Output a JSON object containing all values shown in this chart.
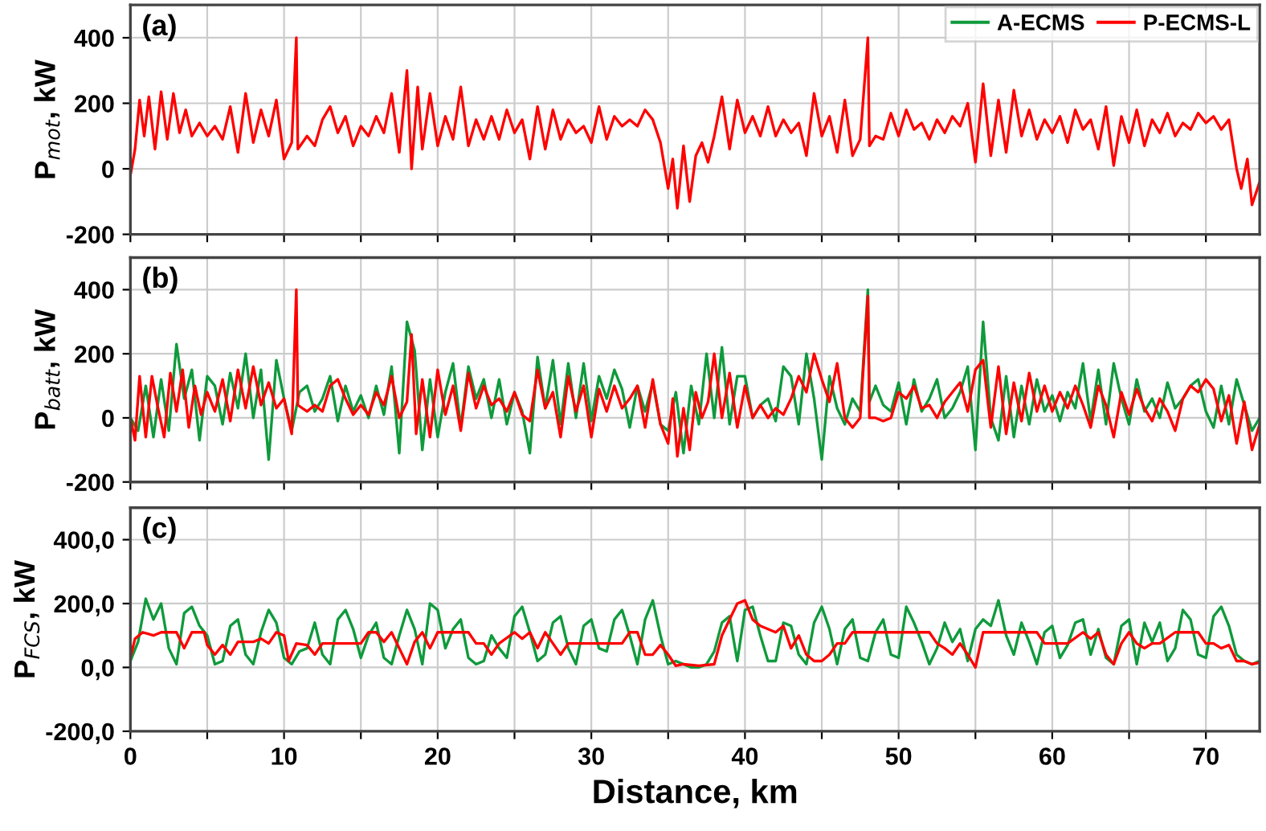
{
  "chart_data": [
    {
      "type": "line",
      "ylabel": "P$_{mot}$, kW",
      "annotations": [
        "(a)"
      ],
      "tick_labels": "y",
      "grid": true,
      "legend": "top right",
      "xlim": [
        0,
        73.5
      ],
      "ylim": [
        -200,
        500
      ],
      "xticks": [
        0,
        {
          "value": 5,
          "label": null
        },
        10,
        {
          "value": 15,
          "label": null
        },
        20,
        {
          "value": 25,
          "label": null
        },
        30,
        {
          "value": 35,
          "label": null
        },
        40,
        {
          "value": 45,
          "label": null
        },
        50,
        {
          "value": 55,
          "label": null
        },
        60,
        {
          "value": 65,
          "label": null
        },
        70
      ],
      "yticks": [
        -200,
        0,
        200,
        400
      ],
      "series": [
        {
          "name": "A-ECMS",
          "color": "#0f9a3c"
        },
        {
          "name": "P-ECMS-L",
          "color": "#ff0000",
          "x": [
            0,
            0.3,
            0.6,
            0.9,
            1.2,
            1.6,
            2,
            2.4,
            2.8,
            3.2,
            3.6,
            4,
            4.5,
            5,
            5.5,
            6,
            6.5,
            7,
            7.5,
            8,
            8.5,
            9,
            9.5,
            10,
            10.5,
            10.8,
            10.9,
            11.5,
            12,
            12.5,
            13,
            13.5,
            14,
            14.5,
            15,
            15.5,
            16,
            16.5,
            17,
            17.5,
            18,
            18.3,
            18.7,
            19,
            19.5,
            20,
            20.5,
            21,
            21.5,
            22,
            22.5,
            23,
            23.5,
            24,
            24.5,
            25,
            25.5,
            26,
            26.5,
            27,
            27.5,
            28,
            28.5,
            29,
            29.5,
            30,
            30.5,
            31,
            31.5,
            32,
            32.5,
            33,
            33.5,
            34,
            34.5,
            35,
            35.3,
            35.6,
            36,
            36.4,
            36.8,
            37.2,
            37.6,
            38,
            38.5,
            39,
            39.5,
            40,
            40.5,
            41,
            41.5,
            42,
            42.5,
            43,
            43.5,
            44,
            44.5,
            45,
            45.5,
            46,
            46.5,
            47,
            47.5,
            48,
            48.1,
            48.5,
            49,
            49.5,
            50,
            50.5,
            51,
            51.5,
            52,
            52.5,
            53,
            53.5,
            54,
            54.5,
            55,
            55.5,
            56,
            56.5,
            57,
            57.5,
            58,
            58.5,
            59,
            59.5,
            60,
            60.5,
            61,
            61.5,
            62,
            62.5,
            63,
            63.5,
            64,
            64.5,
            65,
            65.5,
            66,
            66.5,
            67,
            67.5,
            68,
            68.5,
            69,
            69.5,
            70,
            70.5,
            71,
            71.5,
            72,
            72.3,
            72.7,
            73,
            73.5
          ],
          "values": [
            -20,
            60,
            210,
            100,
            220,
            60,
            235,
            90,
            230,
            110,
            180,
            100,
            140,
            100,
            130,
            90,
            190,
            50,
            230,
            80,
            180,
            100,
            210,
            30,
            80,
            400,
            60,
            100,
            70,
            150,
            190,
            110,
            160,
            70,
            130,
            100,
            160,
            110,
            230,
            50,
            300,
            0,
            250,
            60,
            230,
            70,
            160,
            90,
            250,
            70,
            150,
            90,
            160,
            90,
            180,
            110,
            150,
            30,
            190,
            60,
            180,
            90,
            150,
            110,
            130,
            80,
            190,
            90,
            160,
            130,
            150,
            130,
            180,
            150,
            80,
            -60,
            30,
            -120,
            70,
            -100,
            40,
            80,
            20,
            100,
            220,
            60,
            210,
            110,
            160,
            100,
            190,
            100,
            150,
            110,
            140,
            40,
            230,
            100,
            160,
            50,
            210,
            40,
            90,
            400,
            70,
            100,
            90,
            170,
            100,
            180,
            120,
            140,
            90,
            150,
            110,
            160,
            130,
            200,
            20,
            260,
            40,
            210,
            50,
            240,
            100,
            180,
            90,
            150,
            110,
            160,
            80,
            180,
            120,
            150,
            60,
            190,
            10,
            160,
            80,
            180,
            70,
            150,
            110,
            170,
            100,
            140,
            120,
            170,
            140,
            160,
            120,
            150,
            0,
            -60,
            30,
            -110,
            -40
          ]
        }
      ]
    },
    {
      "type": "line",
      "ylabel": "P$_{batt}$, kW",
      "annotations": [
        "(b)"
      ],
      "tick_labels": "y",
      "grid": true,
      "xlim": [
        0,
        73.5
      ],
      "ylim": [
        -200,
        500
      ],
      "xticks": [
        0,
        {
          "value": 5,
          "label": null
        },
        10,
        {
          "value": 15,
          "label": null
        },
        20,
        {
          "value": 25,
          "label": null
        },
        30,
        {
          "value": 35,
          "label": null
        },
        40,
        {
          "value": 45,
          "label": null
        },
        50,
        {
          "value": 55,
          "label": null
        },
        60,
        {
          "value": 65,
          "label": null
        },
        70
      ],
      "yticks": [
        -200,
        0,
        200,
        400
      ],
      "series": [
        {
          "color": "#0f9a3c",
          "x": [
            0,
            0.5,
            1,
            1.5,
            2,
            2.5,
            3,
            3.5,
            4,
            4.5,
            5,
            5.5,
            6,
            6.5,
            7,
            7.5,
            8,
            8.5,
            9,
            9.5,
            10,
            10.5,
            11,
            11.5,
            12,
            12.5,
            13,
            13.5,
            14,
            14.5,
            15,
            15.5,
            16,
            16.5,
            17,
            17.5,
            18,
            18.5,
            19,
            19.5,
            20,
            20.5,
            21,
            21.5,
            22,
            22.5,
            23,
            23.5,
            24,
            24.5,
            25,
            25.5,
            26,
            26.5,
            27,
            27.5,
            28,
            28.5,
            29,
            29.5,
            30,
            30.5,
            31,
            31.5,
            32,
            32.5,
            33,
            33.5,
            34,
            34.5,
            35,
            35.5,
            36,
            36.5,
            37,
            37.5,
            38,
            38.5,
            39,
            39.5,
            40,
            40.5,
            41,
            41.5,
            42,
            42.5,
            43,
            43.5,
            44,
            44.5,
            45,
            45.5,
            46,
            46.5,
            47,
            47.5,
            48,
            48.1,
            48.5,
            49,
            49.5,
            50,
            50.5,
            51,
            51.5,
            52,
            52.5,
            53,
            53.5,
            54,
            54.5,
            55,
            55.5,
            56,
            56.5,
            57,
            57.5,
            58,
            58.5,
            59,
            59.5,
            60,
            60.5,
            61,
            61.5,
            62,
            62.5,
            63,
            63.5,
            64,
            64.5,
            65,
            65.5,
            66,
            66.5,
            67,
            67.5,
            68,
            68.5,
            69,
            69.5,
            70,
            70.5,
            71,
            71.5,
            72,
            72.5,
            73,
            73.5
          ],
          "values": [
            0,
            -40,
            100,
            -60,
            120,
            -40,
            230,
            60,
            150,
            -70,
            130,
            100,
            -20,
            140,
            30,
            200,
            0,
            150,
            -130,
            180,
            60,
            -40,
            80,
            100,
            20,
            60,
            130,
            -10,
            100,
            20,
            70,
            0,
            100,
            10,
            160,
            -110,
            300,
            210,
            -100,
            120,
            -60,
            80,
            170,
            -30,
            160,
            60,
            120,
            0,
            120,
            -20,
            80,
            20,
            -110,
            190,
            30,
            180,
            -20,
            170,
            0,
            170,
            -10,
            130,
            60,
            150,
            90,
            -30,
            100,
            20,
            110,
            -20,
            -40,
            80,
            -110,
            100,
            -20,
            200,
            0,
            220,
            -20,
            130,
            130,
            0,
            40,
            60,
            -10,
            160,
            130,
            -20,
            200,
            60,
            -130,
            130,
            30,
            -20,
            60,
            20,
            400,
            50,
            100,
            40,
            20,
            110,
            -20,
            120,
            20,
            60,
            120,
            0,
            30,
            80,
            160,
            -100,
            300,
            0,
            -70,
            130,
            -60,
            100,
            -20,
            120,
            20,
            70,
            -10,
            80,
            30,
            170,
            -10,
            150,
            -20,
            170,
            60,
            -20,
            120,
            20,
            60,
            0,
            110,
            30,
            60,
            100,
            120,
            20,
            -30,
            100,
            -20,
            120,
            40,
            -40,
            0
          ]
        },
        {
          "color": "#ff0000",
          "x": [
            0,
            0.3,
            0.6,
            1,
            1.4,
            1.8,
            2.2,
            2.6,
            3,
            3.4,
            3.8,
            4.2,
            4.6,
            5,
            5.5,
            6,
            6.5,
            7,
            7.5,
            8,
            8.5,
            9,
            9.5,
            10,
            10.5,
            10.8,
            10.9,
            11.5,
            12,
            12.5,
            13,
            13.5,
            14,
            14.5,
            15,
            15.5,
            16,
            16.5,
            17,
            17.5,
            18,
            18.3,
            18.6,
            19,
            19.5,
            20,
            20.5,
            21,
            21.5,
            22,
            22.5,
            23,
            23.5,
            24,
            24.5,
            25,
            25.5,
            26,
            26.5,
            27,
            27.5,
            28,
            28.5,
            29,
            29.5,
            30,
            30.5,
            31,
            31.5,
            32,
            32.5,
            33,
            33.5,
            34,
            34.5,
            35,
            35.3,
            35.6,
            36,
            36.4,
            36.8,
            37.2,
            37.6,
            38,
            38.5,
            39,
            39.5,
            40,
            40.5,
            41,
            41.5,
            42,
            42.5,
            43,
            43.5,
            44,
            44.5,
            45,
            45.5,
            46,
            46.5,
            47,
            47.5,
            48,
            48.1,
            48.5,
            49,
            49.5,
            50,
            50.5,
            51,
            51.5,
            52,
            52.5,
            53,
            53.5,
            54,
            54.5,
            55,
            55.5,
            56,
            56.5,
            57,
            57.5,
            58,
            58.5,
            59,
            59.5,
            60,
            60.5,
            61,
            61.5,
            62,
            62.5,
            63,
            63.5,
            64,
            64.5,
            65,
            65.5,
            66,
            66.5,
            67,
            67.5,
            68,
            68.5,
            69,
            69.5,
            70,
            70.5,
            71,
            71.5,
            72,
            72.5,
            73,
            73.5
          ],
          "values": [
            0,
            -70,
            130,
            -60,
            130,
            30,
            -60,
            140,
            20,
            150,
            -30,
            100,
            10,
            80,
            20,
            120,
            -10,
            150,
            30,
            160,
            40,
            110,
            30,
            60,
            -50,
            400,
            40,
            20,
            40,
            20,
            100,
            120,
            60,
            10,
            40,
            10,
            80,
            40,
            130,
            0,
            50,
            260,
            -50,
            120,
            -60,
            150,
            10,
            100,
            -40,
            140,
            30,
            100,
            40,
            60,
            20,
            80,
            10,
            -10,
            150,
            30,
            80,
            -60,
            130,
            20,
            100,
            -60,
            90,
            20,
            100,
            30,
            60,
            100,
            -30,
            120,
            -20,
            -80,
            60,
            -120,
            30,
            -100,
            80,
            0,
            50,
            200,
            0,
            140,
            -30,
            100,
            0,
            40,
            0,
            30,
            10,
            60,
            130,
            80,
            200,
            120,
            50,
            170,
            0,
            -30,
            0,
            380,
            0,
            0,
            -10,
            0,
            80,
            60,
            100,
            30,
            40,
            0,
            50,
            80,
            110,
            20,
            150,
            180,
            -30,
            160,
            -50,
            110,
            -10,
            140,
            20,
            100,
            20,
            80,
            30,
            100,
            40,
            -30,
            100,
            40,
            -60,
            80,
            10,
            90,
            30,
            -10,
            60,
            20,
            -40,
            60,
            100,
            80,
            120,
            90,
            -10,
            70,
            -80,
            50,
            -100,
            -20
          ]
        }
      ]
    },
    {
      "type": "line",
      "ylabel": "P$_{FCS}$, kW",
      "xlabel": "Distance, km",
      "annotations": [
        "(c)"
      ],
      "grid": true,
      "xlim": [
        0,
        73.5
      ],
      "ylim": [
        -200,
        500
      ],
      "xticks": [
        0,
        {
          "value": 5,
          "label": null
        },
        10,
        {
          "value": 15,
          "label": null
        },
        20,
        {
          "value": 25,
          "label": null
        },
        30,
        {
          "value": 35,
          "label": null
        },
        40,
        {
          "value": 45,
          "label": null
        },
        50,
        {
          "value": 55,
          "label": null
        },
        60,
        {
          "value": 65,
          "label": null
        },
        70
      ],
      "yticks": [
        {
          "value": -200,
          "label": "-200,0"
        },
        {
          "value": 0,
          "label": "0,0"
        },
        {
          "value": 200,
          "label": "200,0"
        },
        {
          "value": 400,
          "label": "400,0"
        }
      ],
      "series": [
        {
          "color": "#0f9a3c",
          "x": [
            0,
            0.5,
            1,
            1.5,
            2,
            2.5,
            3,
            3.5,
            4,
            4.5,
            5,
            5.5,
            6,
            6.5,
            7,
            7.5,
            8,
            8.5,
            9,
            9.5,
            10,
            10.5,
            11,
            11.5,
            12,
            12.5,
            13,
            13.5,
            14,
            14.5,
            15,
            15.5,
            16,
            16.5,
            17,
            17.5,
            18,
            18.5,
            19,
            19.5,
            20,
            20.5,
            21,
            21.5,
            22,
            22.5,
            23,
            23.5,
            24,
            24.5,
            25,
            25.5,
            26,
            26.5,
            27,
            27.5,
            28,
            28.5,
            29,
            29.5,
            30,
            30.5,
            31,
            31.5,
            32,
            32.5,
            33,
            33.5,
            34,
            34.5,
            35,
            35.5,
            36,
            36.5,
            37,
            37.5,
            38,
            38.5,
            39,
            39.5,
            40,
            40.5,
            41,
            41.5,
            42,
            42.5,
            43,
            43.5,
            44,
            44.5,
            45,
            45.5,
            46,
            46.5,
            47,
            47.5,
            48,
            48.5,
            49,
            49.5,
            50,
            50.5,
            51,
            51.5,
            52,
            52.5,
            53,
            53.5,
            54,
            54.5,
            55,
            55.5,
            56,
            56.5,
            57,
            57.5,
            58,
            58.5,
            59,
            59.5,
            60,
            60.5,
            61,
            61.5,
            62,
            62.5,
            63,
            63.5,
            64,
            64.5,
            65,
            65.5,
            66,
            66.5,
            67,
            67.5,
            68,
            68.5,
            69,
            69.5,
            70,
            70.5,
            71,
            71.5,
            72,
            72.5,
            73,
            73.5
          ],
          "values": [
            20,
            80,
            215,
            150,
            200,
            60,
            10,
            170,
            190,
            130,
            100,
            10,
            20,
            130,
            150,
            40,
            10,
            110,
            180,
            140,
            30,
            10,
            50,
            60,
            140,
            40,
            10,
            150,
            180,
            120,
            30,
            100,
            140,
            30,
            10,
            100,
            180,
            120,
            10,
            200,
            180,
            60,
            120,
            150,
            30,
            10,
            20,
            100,
            60,
            30,
            160,
            190,
            110,
            20,
            40,
            140,
            160,
            60,
            10,
            130,
            150,
            60,
            50,
            150,
            180,
            100,
            10,
            150,
            210,
            100,
            10,
            20,
            10,
            0,
            0,
            10,
            50,
            140,
            160,
            20,
            180,
            190,
            100,
            20,
            20,
            140,
            130,
            40,
            10,
            140,
            190,
            120,
            10,
            120,
            150,
            30,
            20,
            110,
            150,
            40,
            30,
            190,
            140,
            80,
            10,
            60,
            140,
            80,
            120,
            20,
            120,
            150,
            130,
            210,
            100,
            40,
            140,
            80,
            10,
            110,
            130,
            30,
            70,
            140,
            150,
            40,
            120,
            30,
            10,
            130,
            150,
            10,
            140,
            80,
            140,
            20,
            60,
            180,
            150,
            40,
            30,
            160,
            190,
            130,
            40,
            20,
            10,
            20
          ]
        },
        {
          "color": "#ff0000",
          "x": [
            0,
            0.3,
            0.8,
            1.5,
            2,
            3,
            3.5,
            4,
            4.8,
            5,
            5.5,
            6,
            6.5,
            7,
            7.5,
            8,
            8.5,
            9,
            9.5,
            10,
            10.3,
            10.8,
            11.5,
            12,
            12.5,
            13,
            14,
            15,
            15.5,
            16,
            16.5,
            17,
            17.5,
            18,
            18.5,
            19,
            19.5,
            20,
            21,
            22,
            22.5,
            23,
            23.5,
            24,
            25,
            25.5,
            26,
            26.5,
            27,
            27.5,
            28,
            28.5,
            29,
            30,
            31,
            32,
            32.5,
            33,
            33.5,
            34,
            34.5,
            35,
            35.5,
            36,
            37,
            38,
            38.5,
            39,
            39.5,
            40,
            40.5,
            41,
            42,
            42.5,
            43,
            43.5,
            44,
            44.5,
            45,
            45.5,
            46,
            46.5,
            47,
            48,
            49,
            49.5,
            50,
            50.5,
            51,
            52,
            52.5,
            53,
            53.5,
            54,
            54.5,
            55,
            55.5,
            56,
            57,
            58,
            59,
            59.5,
            60,
            61,
            62,
            62.5,
            63,
            63.5,
            64,
            64.5,
            65,
            65.5,
            66,
            66.5,
            67,
            68,
            69,
            69.5,
            70,
            70.5,
            71,
            71.5,
            72,
            72.5,
            73,
            73.5
          ],
          "values": [
            30,
            90,
            110,
            100,
            110,
            110,
            60,
            110,
            110,
            70,
            40,
            70,
            40,
            80,
            80,
            80,
            90,
            75,
            110,
            100,
            20,
            75,
            70,
            40,
            75,
            75,
            75,
            75,
            110,
            110,
            80,
            110,
            60,
            10,
            80,
            110,
            60,
            110,
            110,
            110,
            75,
            75,
            40,
            75,
            110,
            90,
            110,
            60,
            110,
            75,
            40,
            75,
            75,
            75,
            75,
            75,
            110,
            110,
            40,
            40,
            70,
            40,
            5,
            10,
            5,
            10,
            100,
            150,
            200,
            210,
            150,
            130,
            110,
            130,
            60,
            100,
            40,
            20,
            20,
            40,
            75,
            75,
            110,
            110,
            110,
            110,
            110,
            110,
            110,
            110,
            75,
            60,
            40,
            75,
            40,
            0,
            110,
            110,
            110,
            110,
            110,
            75,
            75,
            75,
            110,
            90,
            110,
            40,
            10,
            75,
            110,
            75,
            60,
            75,
            75,
            110,
            110,
            110,
            75,
            75,
            60,
            70,
            20,
            20,
            10,
            15
          ]
        }
      ]
    }
  ]
}
